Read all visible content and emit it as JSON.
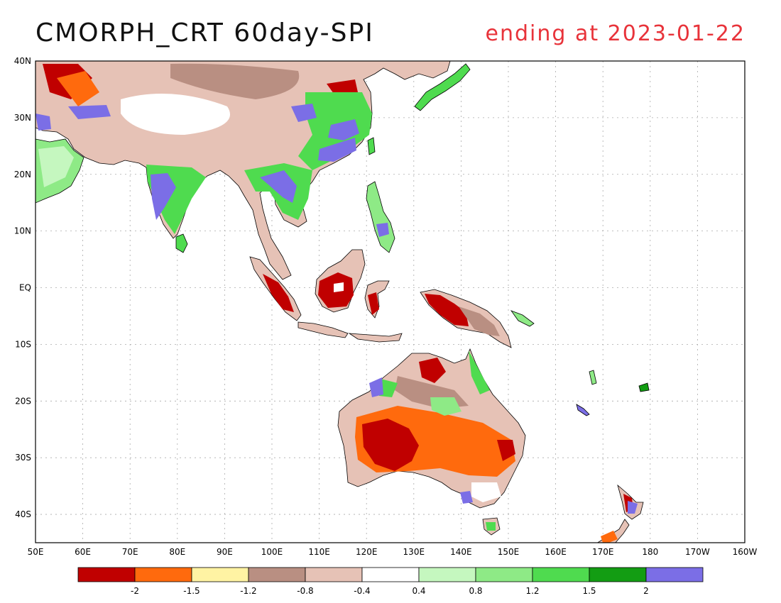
{
  "title": "CMORPH_CRT 60day-SPI",
  "subtitle": "ending at 2023-01-22",
  "map": {
    "lon_range": [
      50,
      200
    ],
    "lat_range": [
      -45,
      40
    ],
    "lat_ticks": [
      {
        "value": 40,
        "label": "40N"
      },
      {
        "value": 30,
        "label": "30N"
      },
      {
        "value": 20,
        "label": "20N"
      },
      {
        "value": 10,
        "label": "10N"
      },
      {
        "value": 0,
        "label": "EQ"
      },
      {
        "value": -10,
        "label": "10S"
      },
      {
        "value": -20,
        "label": "20S"
      },
      {
        "value": -30,
        "label": "30S"
      },
      {
        "value": -40,
        "label": "40S"
      }
    ],
    "lon_ticks": [
      {
        "value": 50,
        "label": "50E"
      },
      {
        "value": 60,
        "label": "60E"
      },
      {
        "value": 70,
        "label": "70E"
      },
      {
        "value": 80,
        "label": "80E"
      },
      {
        "value": 90,
        "label": "90E"
      },
      {
        "value": 100,
        "label": "100E"
      },
      {
        "value": 110,
        "label": "110E"
      },
      {
        "value": 120,
        "label": "120E"
      },
      {
        "value": 130,
        "label": "130E"
      },
      {
        "value": 140,
        "label": "140E"
      },
      {
        "value": 150,
        "label": "150E"
      },
      {
        "value": 160,
        "label": "160E"
      },
      {
        "value": 170,
        "label": "170E"
      },
      {
        "value": 180,
        "label": "180"
      },
      {
        "value": 190,
        "label": "170W"
      },
      {
        "value": 200,
        "label": "160W"
      }
    ]
  },
  "legend": {
    "colors": [
      "#c00000",
      "#ff6a0d",
      "#fff3a3",
      "#b98f82",
      "#e6c2b6",
      "#ffffff",
      "#c5f7bf",
      "#8eea86",
      "#4fdb4f",
      "#139d13",
      "#7b6ee6"
    ],
    "labels": [
      "-2",
      "-1.5",
      "-1.2",
      "-0.8",
      "-0.4",
      "0.4",
      "0.8",
      "1.2",
      "1.5",
      "2"
    ]
  },
  "colors": {
    "dry_extreme": "#c00000",
    "dry_severe": "#ff6a0d",
    "dry_moderate": "#fff3a3",
    "dry_mild": "#b98f82",
    "dry_slight": "#e6c2b6",
    "normal": "#ffffff",
    "wet_slight": "#c5f7bf",
    "wet_mild": "#8eea86",
    "wet_moderate": "#4fdb4f",
    "wet_severe": "#139d13",
    "wet_extreme": "#7b6ee6",
    "title_right": "#e8333a"
  }
}
